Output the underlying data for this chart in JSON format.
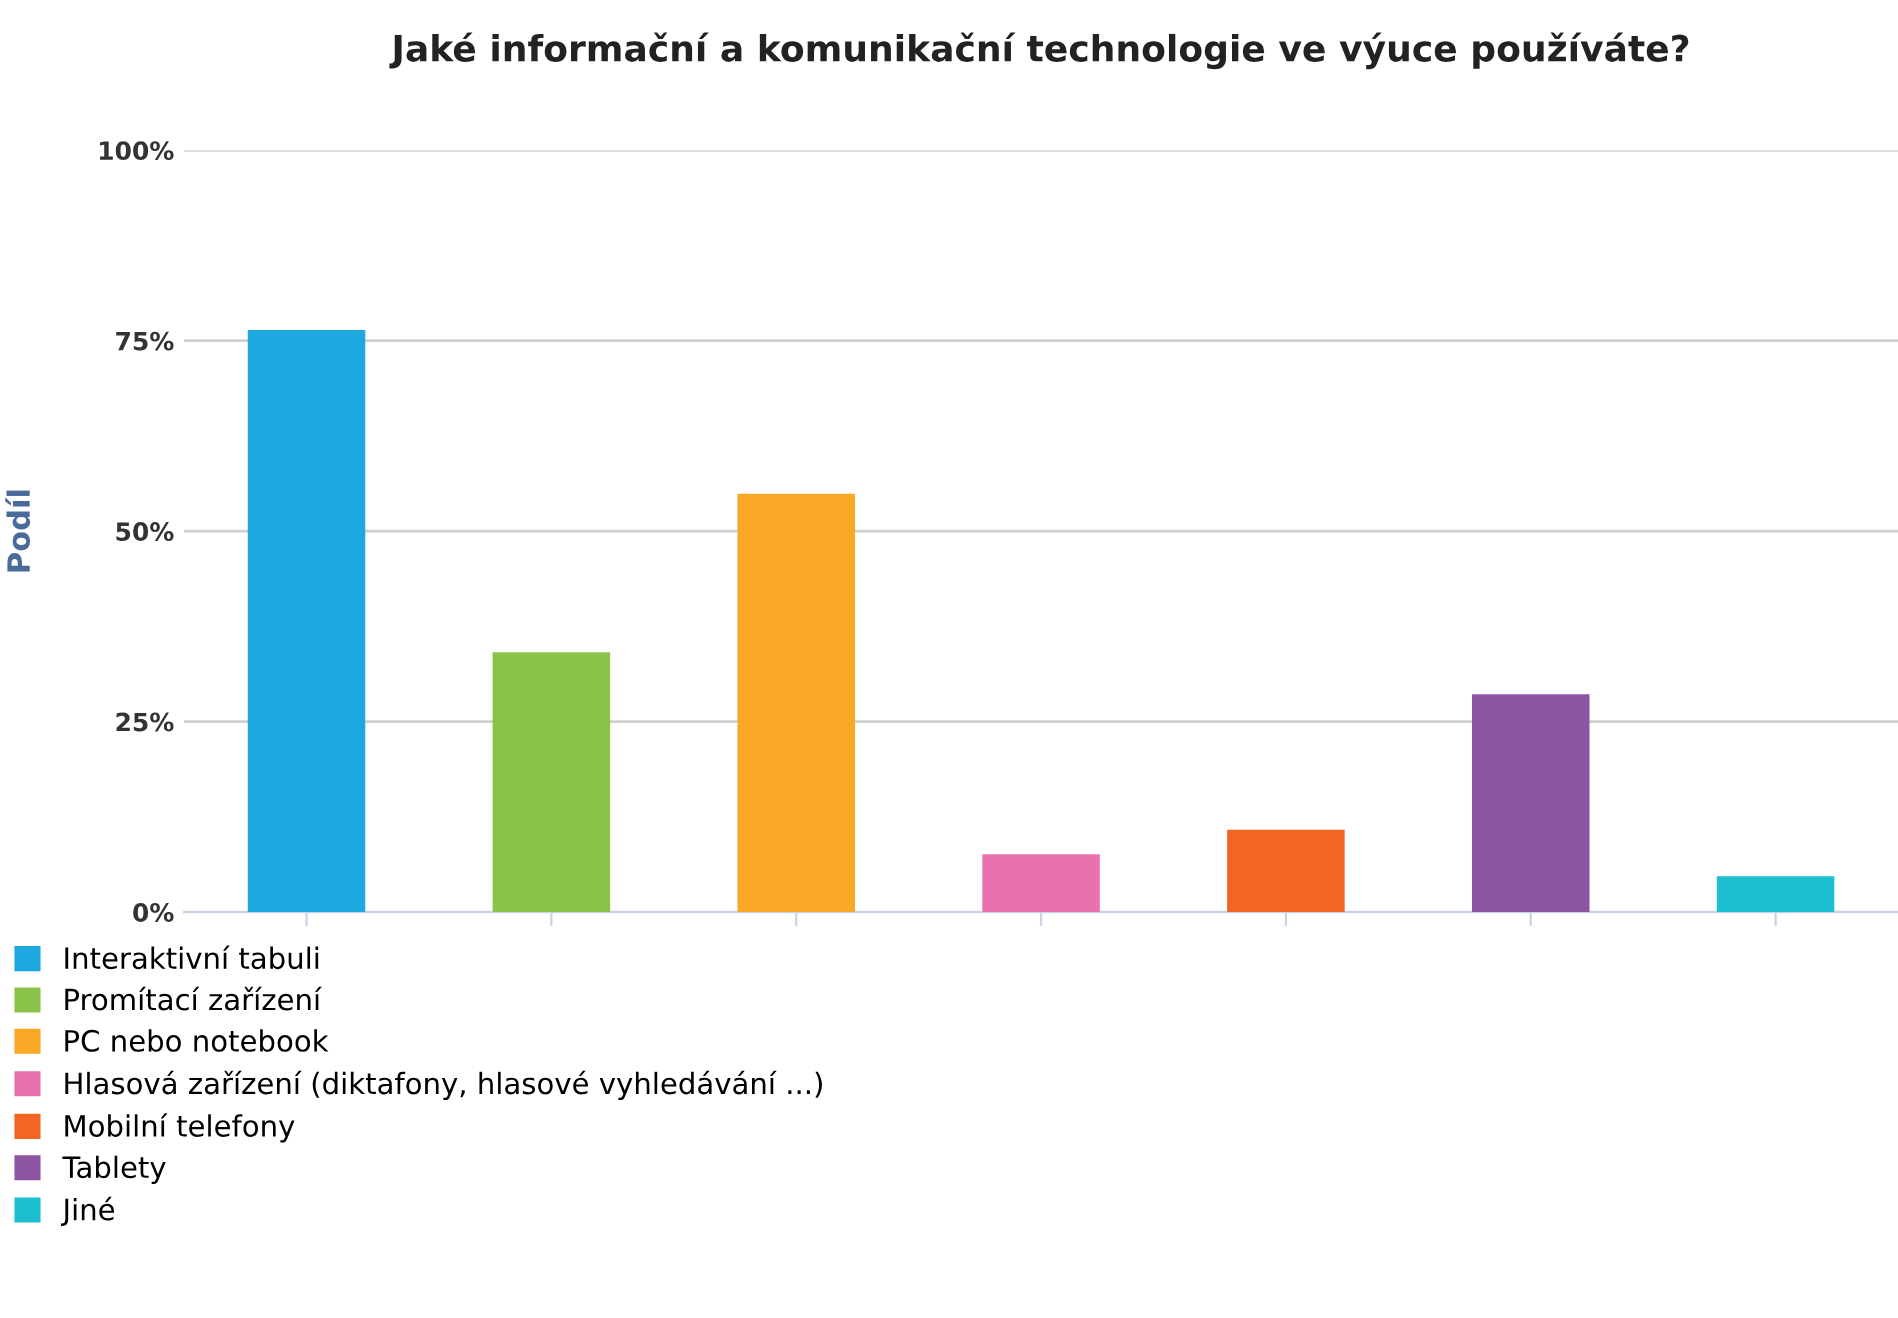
{
  "chart_data": {
    "type": "bar",
    "title": "Jaké informační a komunikační technologie ve výuce používáte?",
    "ylabel": "Podíl",
    "categories": [
      null,
      null,
      null,
      null,
      null,
      null,
      null
    ],
    "series": [
      {
        "name": "Interaktivní tabuli",
        "color": "#1fa8e0",
        "values": [
          76.4,
          null,
          null,
          null,
          null,
          null,
          null
        ]
      },
      {
        "name": "Promítací zařízení",
        "color": "#8bc34a",
        "values": [
          null,
          34.1,
          null,
          null,
          null,
          null,
          null
        ]
      },
      {
        "name": "PC nebo notebook",
        "color": "#f9a825",
        "values": [
          null,
          null,
          54.9,
          null,
          null,
          null,
          null
        ]
      },
      {
        "name": "Hlasová zařízení (diktafony, hlasové vyhledávání ...)",
        "color": "#e872ae",
        "values": [
          null,
          null,
          null,
          7.6,
          null,
          null,
          null
        ]
      },
      {
        "name": "Mobilní telefony",
        "color": "#f26522",
        "values": [
          null,
          null,
          null,
          null,
          10.8,
          null,
          null
        ]
      },
      {
        "name": "Tablety",
        "color": "#8e55a3",
        "values": [
          null,
          null,
          null,
          null,
          null,
          28.6,
          null
        ]
      },
      {
        "name": "Jiné",
        "color": "#1cbfd0",
        "values": [
          null,
          null,
          null,
          null,
          null,
          null,
          4.7
        ]
      }
    ],
    "ylim": [
      0,
      100
    ],
    "yticks": [
      {
        "value": 0,
        "label": "0%"
      },
      {
        "value": 25,
        "label": "25%"
      },
      {
        "value": 50,
        "label": "50%"
      },
      {
        "value": 75,
        "label": "75%"
      },
      {
        "value": 100,
        "label": "100%"
      }
    ],
    "grid": "y",
    "legend": "bottom left"
  }
}
